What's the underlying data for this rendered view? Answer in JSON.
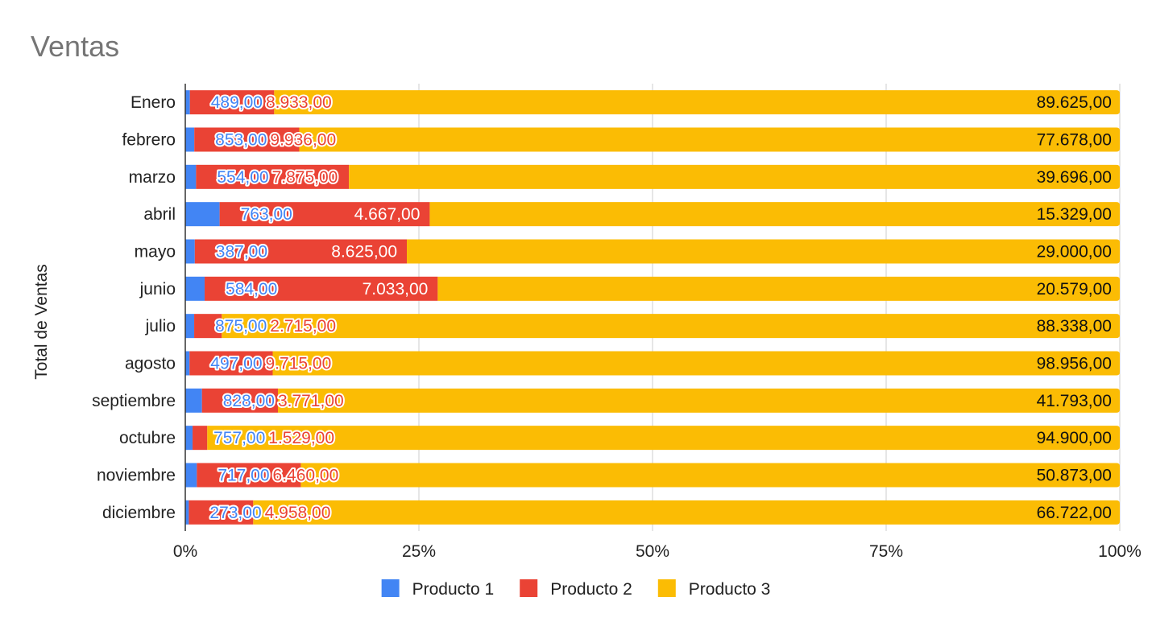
{
  "chart_data": {
    "type": "bar",
    "orientation": "horizontal",
    "stacked": "percent",
    "title": "Ventas",
    "ylabel": "Total de Ventas",
    "xlabel": "",
    "xlim": [
      0,
      100
    ],
    "x_ticks": [
      "0%",
      "25%",
      "50%",
      "75%",
      "100%"
    ],
    "grid": true,
    "legend_position": "bottom",
    "categories": [
      "Enero",
      "febrero",
      "marzo",
      "abril",
      "mayo",
      "junio",
      "julio",
      "agosto",
      "septiembre",
      "octubre",
      "noviembre",
      "diciembre"
    ],
    "series": [
      {
        "name": "Producto 1",
        "color": "#4285f4",
        "values": [
          489,
          853,
          554,
          763,
          387,
          584,
          875,
          497,
          828,
          757,
          717,
          273
        ],
        "labels": [
          "489,00",
          "853,00",
          "554,00",
          "763,00",
          "387,00",
          "584,00",
          "875,00",
          "497,00",
          "828,00",
          "757,00",
          "717,00",
          "273,00"
        ]
      },
      {
        "name": "Producto 2",
        "color": "#ea4335",
        "values": [
          8933,
          9936,
          7875,
          4667,
          8625,
          7033,
          2715,
          9715,
          3771,
          1529,
          6460,
          4958
        ],
        "labels": [
          "8.933,00",
          "9.936,00",
          "7.875,00",
          "4.667,00",
          "8.625,00",
          "7.033,00",
          "2.715,00",
          "9.715,00",
          "3.771,00",
          "1.529,00",
          "6.460,00",
          "4.958,00"
        ]
      },
      {
        "name": "Producto 3",
        "color": "#fbbc04",
        "values": [
          89625,
          77678,
          39696,
          15329,
          29000,
          20579,
          88338,
          98956,
          41793,
          94900,
          50873,
          66722
        ],
        "labels": [
          "89.625,00",
          "77.678,00",
          "39.696,00",
          "15.329,00",
          "29.000,00",
          "20.579,00",
          "88.338,00",
          "98.956,00",
          "41.793,00",
          "94.900,00",
          "50.873,00",
          "66.722,00"
        ]
      }
    ]
  }
}
